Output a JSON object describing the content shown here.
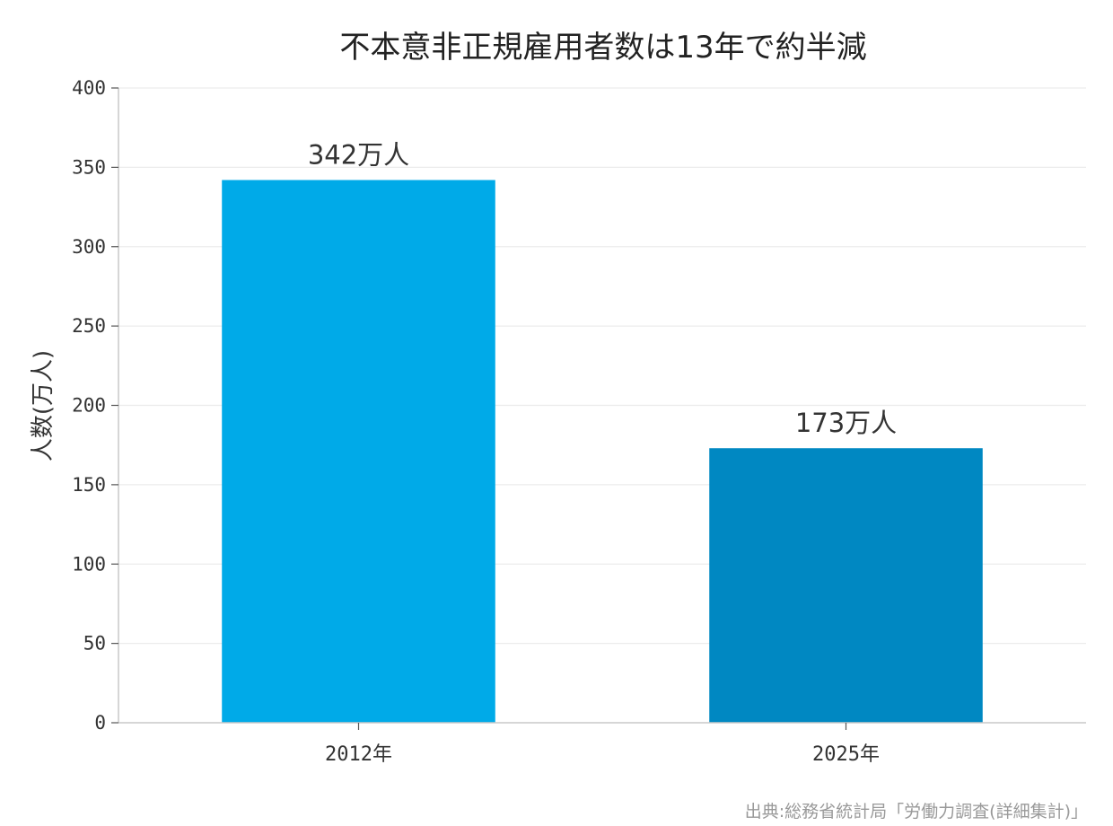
{
  "chart_data": {
    "type": "bar",
    "title": "不本意非正規雇用者数は13年で約半減",
    "ylabel": "人数(万人)",
    "xlabel": "",
    "categories": [
      "2012年",
      "2025年"
    ],
    "values": [
      342,
      173
    ],
    "data_labels": [
      "342万人",
      "173万人"
    ],
    "ylim": [
      0,
      400
    ],
    "yticks": [
      0,
      50,
      100,
      150,
      200,
      250,
      300,
      350,
      400
    ],
    "grid": "horizontal",
    "colors": [
      "#00AAE8",
      "#0088C2"
    ],
    "source": "出典:総務省統計局「労働力調査(詳細集計)」"
  }
}
